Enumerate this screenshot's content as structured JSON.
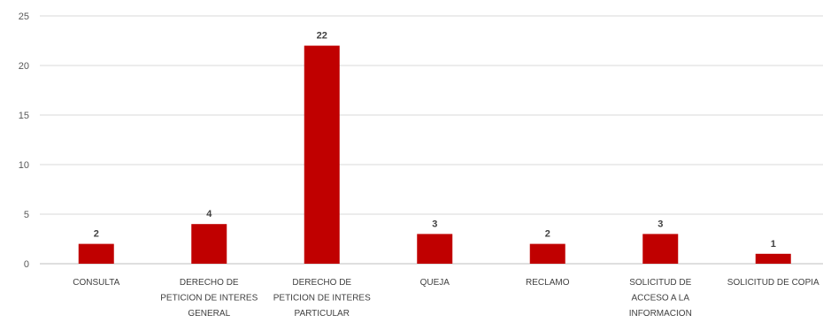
{
  "chart_data": {
    "type": "bar",
    "title": "",
    "xlabel": "",
    "ylabel": "",
    "ylim": [
      0,
      25
    ],
    "yticks": [
      0,
      5,
      10,
      15,
      20,
      25
    ],
    "grid": true,
    "legend": "none",
    "bar_color": "#c00000",
    "grid_color": "#d9d9d9",
    "categories": [
      [
        "CONSULTA"
      ],
      [
        "DERECHO DE",
        "PETICION DE INTERES",
        "GENERAL"
      ],
      [
        "DERECHO DE",
        "PETICION DE INTERES",
        "PARTICULAR"
      ],
      [
        "QUEJA"
      ],
      [
        "RECLAMO"
      ],
      [
        "SOLICITUD DE",
        "ACCESO A LA",
        "INFORMACION"
      ],
      [
        "SOLICITUD DE COPIA"
      ]
    ],
    "values": [
      2,
      4,
      22,
      3,
      2,
      3,
      1
    ]
  }
}
